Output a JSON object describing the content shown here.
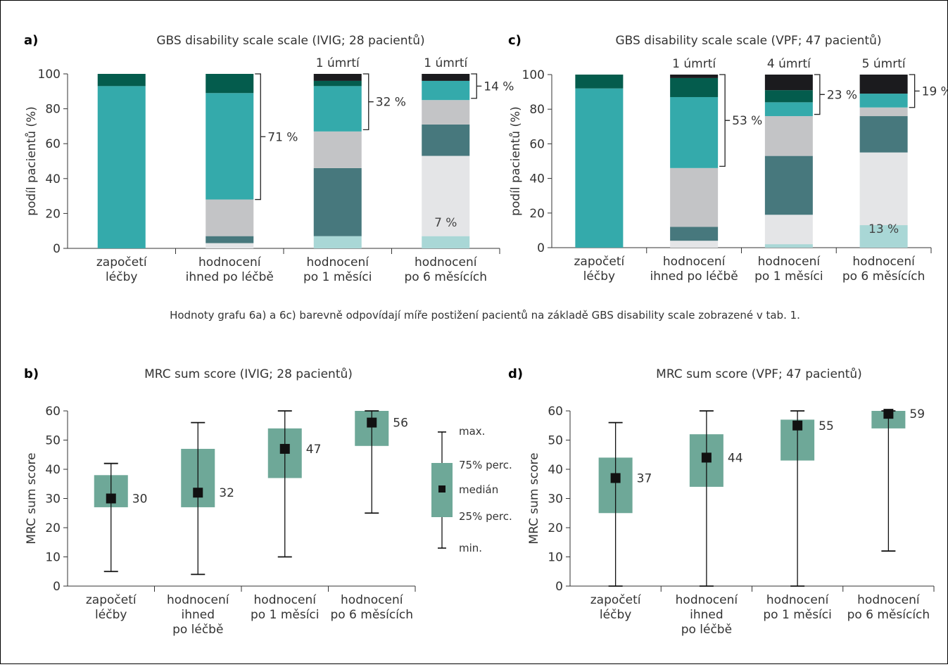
{
  "figure": {
    "panel_a_label": "a)",
    "panel_b_label": "b)",
    "panel_c_label": "c)",
    "panel_d_label": "d)",
    "caption": "Hodnoty grafu 6a) a 6c) barevně odpovídají míře postižení pacientů na základě GBS disability scale zobrazené v tab. 1."
  },
  "legend_b": {
    "max": "max.",
    "p75": "75% perc.",
    "median": "medián",
    "p25": "25% perc.",
    "min": "min."
  },
  "chart_data": [
    {
      "id": "a",
      "type": "bar",
      "stacked": true,
      "title": "GBS disability scale scale (IVIG; 28 pacientů)",
      "ylabel": "podíl pacientů (%)",
      "ylim": [
        0,
        100
      ],
      "yticks": [
        0,
        20,
        40,
        60,
        80,
        100
      ],
      "grid": false,
      "categories": [
        [
          "započetí",
          "léčby"
        ],
        [
          "hodnocení",
          "ihned po léčbě"
        ],
        [
          "hodnocení",
          "po 1 měsíci"
        ],
        [
          "hodnocení",
          "po 6 měsících"
        ]
      ],
      "segment_colors": [
        "#ffffff",
        "#a9d7d6",
        "#e4e5e7",
        "#47787d",
        "#c3c4c6",
        "#34aaab",
        "#045c4d",
        "#1b1b1e"
      ],
      "stacks": [
        [
          0,
          0,
          0,
          0,
          0,
          93,
          7,
          0
        ],
        [
          0,
          0,
          3,
          4,
          21,
          61,
          11,
          0
        ],
        [
          0,
          7,
          0,
          39,
          21,
          26,
          3,
          4
        ],
        [
          0,
          7,
          46,
          18,
          14,
          11,
          0,
          4
        ]
      ],
      "top_labels": [
        "",
        "",
        "1 úmrtí",
        "1 úmrtí"
      ],
      "brackets": [
        {
          "category": 1,
          "from": 28,
          "to": 100,
          "label": "71 %"
        },
        {
          "category": 2,
          "from": 68,
          "to": 100,
          "label": "32 %"
        },
        {
          "category": 3,
          "from": 86,
          "to": 100,
          "label": "14 %"
        }
      ],
      "annotations": [
        {
          "category": 3,
          "y": 15,
          "label": "7 %"
        }
      ]
    },
    {
      "id": "c",
      "type": "bar",
      "stacked": true,
      "title": "GBS disability scale scale (VPF; 47 pacientů)",
      "ylabel": "podíl pacientů (%)",
      "ylim": [
        0,
        100
      ],
      "yticks": [
        0,
        20,
        40,
        60,
        80,
        100
      ],
      "grid": false,
      "categories": [
        [
          "započetí",
          "léčby"
        ],
        [
          "hodnocení",
          "ihned po léčbě"
        ],
        [
          "hodnocení",
          "po 1 měsíci"
        ],
        [
          "hodnocení",
          "po 6 měsících"
        ]
      ],
      "segment_colors": [
        "#ffffff",
        "#a9d7d6",
        "#e4e5e7",
        "#47787d",
        "#c3c4c6",
        "#34aaab",
        "#045c4d",
        "#1b1b1e"
      ],
      "stacks": [
        [
          0,
          0,
          0,
          0,
          0,
          92,
          8,
          0
        ],
        [
          0,
          0,
          4,
          8,
          34,
          41,
          11,
          2
        ],
        [
          0,
          2,
          17,
          34,
          23,
          8,
          7,
          9
        ],
        [
          0,
          13,
          42,
          21,
          5,
          8,
          0,
          11
        ]
      ],
      "top_labels": [
        "",
        "1 úmrtí",
        "4 úmrtí",
        "5 úmrtí"
      ],
      "brackets": [
        {
          "category": 1,
          "from": 47,
          "to": 100,
          "label": "53 %"
        },
        {
          "category": 2,
          "from": 77,
          "to": 100,
          "label": "23 %"
        },
        {
          "category": 3,
          "from": 81,
          "to": 100,
          "label": "19 %"
        }
      ],
      "annotations": [
        {
          "category": 3,
          "y": 11,
          "label": "13 %"
        }
      ]
    },
    {
      "id": "b",
      "type": "box",
      "title": "MRC sum score (IVIG; 28 pacientů)",
      "ylabel": "MRC sum score",
      "ylim": [
        0,
        60
      ],
      "yticks": [
        0,
        10,
        20,
        30,
        40,
        50,
        60
      ],
      "grid": false,
      "box_color": "#6ea898",
      "categories": [
        [
          "započetí",
          "léčby"
        ],
        [
          "hodnocení",
          "ihned",
          "po léčbě"
        ],
        [
          "hodnocení",
          "po 1 měsíci"
        ],
        [
          "hodnocení",
          "po 6 měsících"
        ]
      ],
      "boxes": [
        {
          "min": 5,
          "p25": 27,
          "median": 30,
          "p75": 38,
          "max": 42,
          "label": "30"
        },
        {
          "min": 4,
          "p25": 27,
          "median": 32,
          "p75": 47,
          "max": 56,
          "label": "32"
        },
        {
          "min": 10,
          "p25": 37,
          "median": 47,
          "p75": 54,
          "max": 60,
          "label": "47"
        },
        {
          "min": 25,
          "p25": 48,
          "median": 56,
          "p75": 60,
          "max": 60,
          "label": "56"
        }
      ]
    },
    {
      "id": "d",
      "type": "box",
      "title": "MRC sum score (VPF; 47 pacientů)",
      "ylabel": "MRC sum score",
      "ylim": [
        0,
        60
      ],
      "yticks": [
        0,
        10,
        20,
        30,
        40,
        50,
        60
      ],
      "grid": false,
      "box_color": "#6ea898",
      "categories": [
        [
          "započetí",
          "léčby"
        ],
        [
          "hodnocení",
          "ihned",
          "po léčbě"
        ],
        [
          "hodnocení",
          "po 1 měsíci"
        ],
        [
          "hodnocení",
          "po 6 měsících"
        ]
      ],
      "boxes": [
        {
          "min": 0,
          "p25": 25,
          "median": 37,
          "p75": 44,
          "max": 56,
          "label": "37"
        },
        {
          "min": 0,
          "p25": 34,
          "median": 44,
          "p75": 52,
          "max": 60,
          "label": "44"
        },
        {
          "min": 0,
          "p25": 43,
          "median": 55,
          "p75": 57,
          "max": 60,
          "label": "55"
        },
        {
          "min": 12,
          "p25": 54,
          "median": 59,
          "p75": 60,
          "max": 60,
          "label": "59"
        }
      ]
    }
  ]
}
